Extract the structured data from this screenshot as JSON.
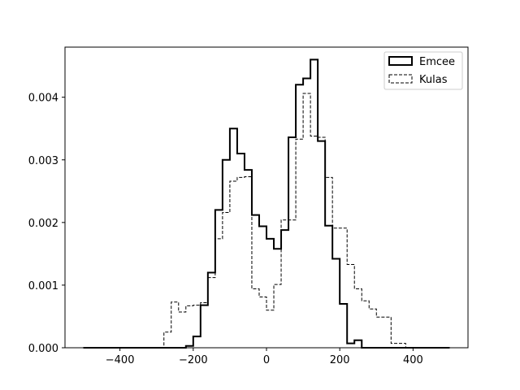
{
  "chart_data": {
    "type": "histogram",
    "title": "",
    "xlabel": "",
    "ylabel": "",
    "xlim": [
      -550,
      550
    ],
    "ylim": [
      0,
      0.0048
    ],
    "x_ticks": [
      -400,
      -200,
      0,
      200,
      400
    ],
    "x_tick_labels": [
      "−400",
      "−200",
      "0",
      "200",
      "400"
    ],
    "y_ticks": [
      0,
      0.001,
      0.002,
      0.003,
      0.004
    ],
    "y_tick_labels": [
      "0.000",
      "0.001",
      "0.002",
      "0.003",
      "0.004"
    ],
    "legend_position": "top-right",
    "series": [
      {
        "name": "Emcee",
        "style": "solid",
        "color": "#000000",
        "bin_edges": [
          -500,
          -220,
          -200,
          -180,
          -160,
          -140,
          -120,
          -100,
          -80,
          -60,
          -40,
          -20,
          0,
          20,
          40,
          60,
          80,
          100,
          120,
          140,
          160,
          180,
          200,
          220,
          240,
          260,
          500
        ],
        "values": [
          0,
          3e-05,
          0.00018,
          0.00068,
          0.0012,
          0.0022,
          0.003,
          0.0035,
          0.0031,
          0.00284,
          0.00212,
          0.00194,
          0.00174,
          0.00158,
          0.00188,
          0.00336,
          0.0042,
          0.0043,
          0.0046,
          0.0033,
          0.00195,
          0.00142,
          0.0007,
          7e-05,
          0.00012,
          0
        ]
      },
      {
        "name": "Kulas",
        "style": "dashed",
        "color": "#000000",
        "bin_edges": [
          -500,
          -280,
          -260,
          -240,
          -220,
          -200,
          -180,
          -160,
          -140,
          -120,
          -100,
          -80,
          -60,
          -40,
          -20,
          0,
          20,
          40,
          60,
          80,
          100,
          120,
          140,
          160,
          180,
          200,
          220,
          240,
          260,
          280,
          300,
          340,
          380,
          500
        ],
        "values": [
          0,
          0.00025,
          0.00073,
          0.00057,
          0.00067,
          0.00068,
          0.00072,
          0.00112,
          0.00174,
          0.00216,
          0.00266,
          0.00272,
          0.00273,
          0.00094,
          0.00081,
          0.0006,
          0.00101,
          0.00204,
          0.00204,
          0.00333,
          0.00406,
          0.00338,
          0.00336,
          0.00272,
          0.00191,
          0.00191,
          0.00133,
          0.00094,
          0.00075,
          0.00062,
          0.00049,
          7e-05,
          0
        ]
      }
    ]
  }
}
